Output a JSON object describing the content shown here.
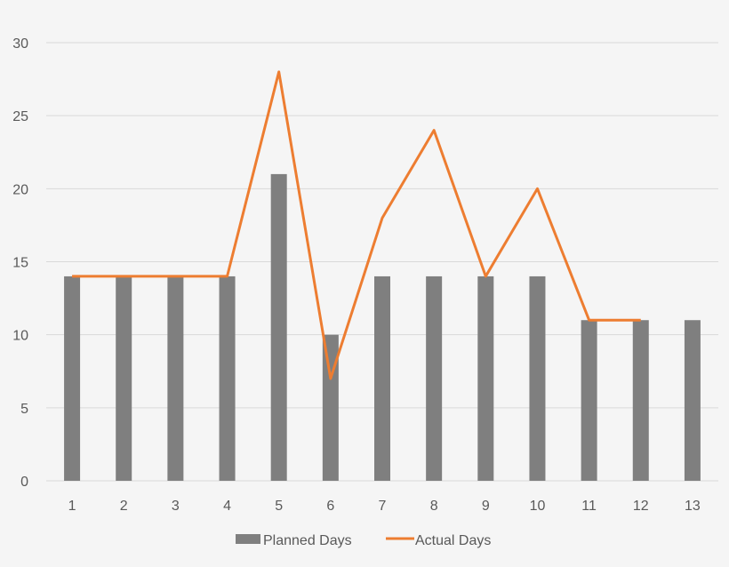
{
  "chart_data": {
    "type": "bar",
    "title": "",
    "xlabel": "",
    "ylabel": "",
    "categories": [
      "1",
      "2",
      "3",
      "4",
      "5",
      "6",
      "7",
      "8",
      "9",
      "10",
      "11",
      "12",
      "13"
    ],
    "series": [
      {
        "name": "Planned Days",
        "type": "bar",
        "color": "#7f7f7f",
        "values": [
          14,
          14,
          14,
          14,
          21,
          10,
          14,
          14,
          14,
          14,
          11,
          11,
          11
        ]
      },
      {
        "name": "Actual Days",
        "type": "line",
        "color": "#ed7d31",
        "values": [
          14,
          14,
          14,
          14,
          28,
          7,
          18,
          24,
          14,
          20,
          11,
          11,
          null
        ]
      }
    ],
    "ylim": [
      0,
      30
    ],
    "yticks": [
      0,
      5,
      10,
      15,
      20,
      25,
      30
    ],
    "grid": true,
    "legend_position": "bottom"
  },
  "legend": {
    "planned_label": "Planned Days",
    "actual_label": "Actual Days"
  }
}
